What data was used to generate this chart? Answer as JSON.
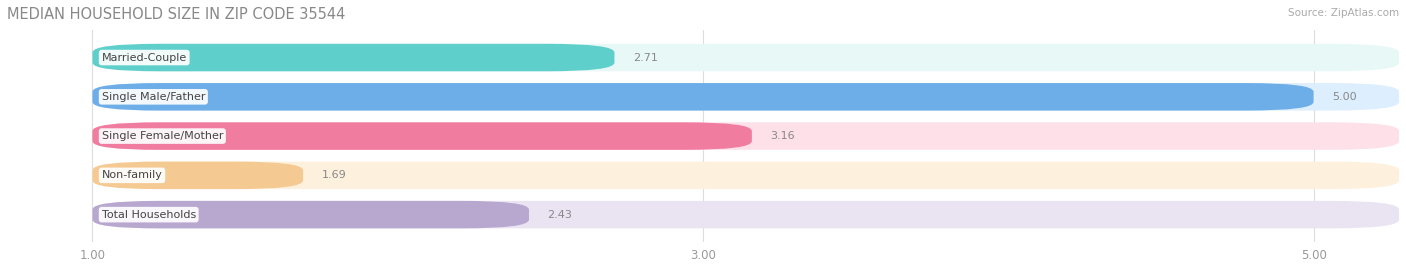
{
  "title": "MEDIAN HOUSEHOLD SIZE IN ZIP CODE 35544",
  "source": "Source: ZipAtlas.com",
  "categories": [
    "Married-Couple",
    "Single Male/Father",
    "Single Female/Mother",
    "Non-family",
    "Total Households"
  ],
  "values": [
    2.71,
    5.0,
    3.16,
    1.69,
    2.43
  ],
  "bar_colors": [
    "#5ecfcb",
    "#6eaee8",
    "#f07ca0",
    "#f5c992",
    "#b8a8d0"
  ],
  "bar_bg_colors": [
    "#e8f8f7",
    "#ddeeff",
    "#fde0e8",
    "#fdf0dc",
    "#eae4f2"
  ],
  "xlim_left": 0.72,
  "xlim_right": 5.28,
  "xstart": 1.0,
  "xticks": [
    1.0,
    3.0,
    5.0
  ],
  "xtick_labels": [
    "1.00",
    "3.00",
    "5.00"
  ],
  "cat_label_color": "#555555",
  "title_color": "#888888",
  "source_color": "#aaaaaa",
  "title_fontsize": 10.5,
  "bar_height": 0.7,
  "bar_gap": 1.0,
  "figsize": [
    14.06,
    2.69
  ],
  "dpi": 100,
  "bg_color": "#ffffff",
  "grid_color": "#dddddd",
  "label_fontsize": 8.0,
  "val_fontsize": 8.0
}
